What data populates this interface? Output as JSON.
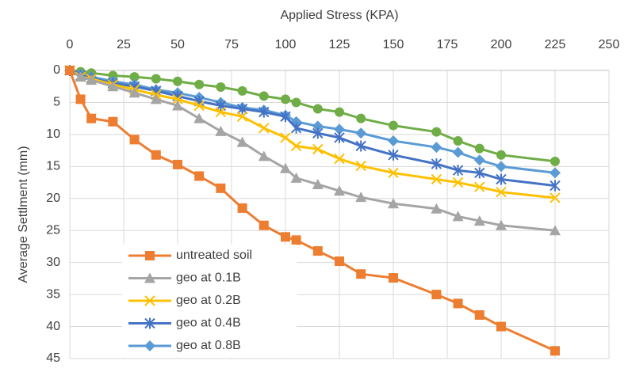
{
  "chart_data": {
    "type": "line",
    "xlabel": "Applied Stress (KPA)",
    "ylabel": "Average Settlment (mm)",
    "x_axis_position": "top",
    "y_inverted": true,
    "grid": true,
    "legend": "lower left",
    "xlim": [
      0,
      250
    ],
    "xticks": [
      0,
      25,
      50,
      75,
      100,
      125,
      150,
      175,
      200,
      225,
      250
    ],
    "ylim": [
      0,
      45
    ],
    "yticks": [
      0,
      5,
      10,
      15,
      20,
      25,
      30,
      35,
      40,
      45
    ],
    "x": [
      0,
      5,
      10,
      20,
      30,
      40,
      50,
      60,
      70,
      80,
      90,
      100,
      105,
      115,
      125,
      135,
      150,
      170,
      180,
      190,
      200,
      225
    ],
    "series": [
      {
        "name": "untreated soil",
        "color": "#ed7d31",
        "marker": "square",
        "values": [
          0,
          4.5,
          7.5,
          8,
          10.8,
          13.2,
          14.7,
          16.5,
          18.4,
          21.5,
          24.2,
          26,
          26.5,
          28.2,
          29.8,
          31.8,
          32.4,
          35,
          36.4,
          38.2,
          40,
          43.8
        ]
      },
      {
        "name": "geo at 0.1B",
        "color": "#a5a5a5",
        "marker": "triangle",
        "values": [
          0,
          1,
          1.5,
          2.5,
          3.5,
          4.5,
          5.5,
          7.5,
          9.5,
          11.2,
          13.4,
          15.3,
          16.8,
          17.8,
          18.8,
          19.8,
          20.8,
          21.6,
          22.8,
          23.5,
          24.2,
          25
        ]
      },
      {
        "name": "geo at 0.2B",
        "color": "#ffc000",
        "marker": "x",
        "values": [
          0,
          1,
          1.3,
          2.2,
          3,
          3.8,
          4.5,
          5.5,
          6.5,
          7.2,
          9,
          10.5,
          11.8,
          12.3,
          13.8,
          14.9,
          16,
          17,
          17.5,
          18.2,
          19,
          19.9
        ]
      },
      {
        "name": "geo at 0.4B",
        "color": "#4472c4",
        "marker": "star",
        "values": [
          0,
          0.8,
          1.2,
          2,
          2.5,
          3.2,
          4,
          4.8,
          5.5,
          6,
          6.5,
          7.2,
          9,
          9.8,
          10.5,
          11.8,
          13.2,
          14.6,
          15.6,
          16,
          17,
          18
        ]
      },
      {
        "name": "geo at 0.8B",
        "color": "#5b9bd5",
        "marker": "diamond",
        "values": [
          0,
          0.6,
          1,
          1.7,
          2.2,
          3,
          3.5,
          4.2,
          5,
          5.8,
          6.2,
          7,
          8,
          8.7,
          9.2,
          9.8,
          11,
          12,
          12.8,
          14,
          15,
          16
        ]
      },
      {
        "color": "#70ad47",
        "marker": "circle",
        "values": [
          0,
          0.2,
          0.4,
          0.8,
          1,
          1.3,
          1.7,
          2.2,
          2.6,
          3.2,
          4,
          4.5,
          5,
          6,
          6.5,
          7.5,
          8.6,
          9.6,
          11,
          12.2,
          13.2,
          14.2
        ]
      }
    ]
  }
}
